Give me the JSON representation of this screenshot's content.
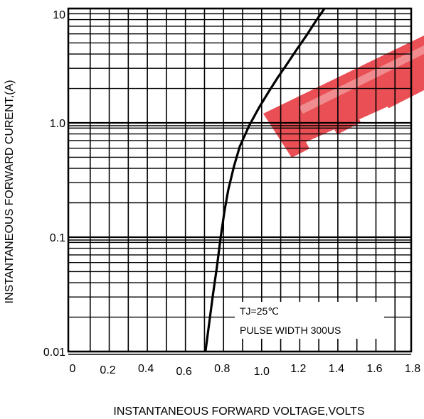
{
  "chart_data": {
    "type": "line",
    "xlabel": "INSTANTANEOUS FORWARD VOLTAGE,VOLTS",
    "ylabel": "INSTANTANEOUS FORWARD  CURENT,(A)",
    "xlim": [
      0,
      1.8
    ],
    "ylim": [
      0.01,
      10
    ],
    "yscale": "log",
    "grid": true,
    "x_tick_labels": [
      "0",
      "0.2",
      "0.4",
      "0.6",
      "0.8",
      "1.0",
      "1.2",
      "1.4",
      "1.6",
      "1.8"
    ],
    "y_tick_labels": [
      "10",
      "1.0",
      "0.1",
      "0.01"
    ],
    "annotations": [
      "TJ=25℃",
      "PULSE WIDTH 300US"
    ],
    "watermark_color": "#e8464b",
    "series": [
      {
        "x": [
          0.72,
          0.74,
          0.76,
          0.78,
          0.8,
          0.82,
          0.84,
          0.87,
          0.9,
          0.95,
          1.0,
          1.05,
          1.1,
          1.15,
          1.2,
          1.25,
          1.3,
          1.35
        ],
        "y": [
          0.01,
          0.018,
          0.032,
          0.055,
          0.1,
          0.17,
          0.26,
          0.42,
          0.62,
          0.95,
          1.35,
          1.85,
          2.5,
          3.3,
          4.4,
          5.8,
          7.8,
          10.3
        ]
      }
    ]
  }
}
